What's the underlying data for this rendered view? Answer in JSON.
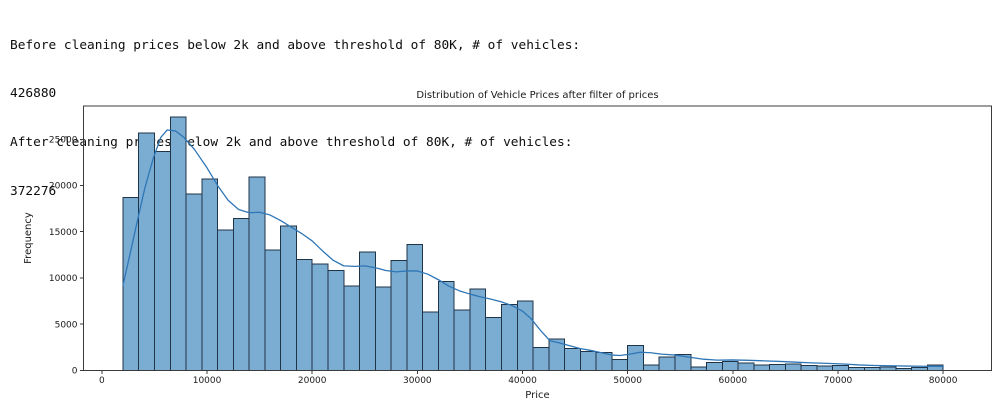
{
  "console_output": {
    "lines": [
      "Before cleaning prices below 2k and above threshold of 80K, # of vehicles:",
      "426880",
      "After cleaning prices below 2k and above threshold of 80K, # of vehicles:",
      "372276"
    ]
  },
  "chart_data": {
    "type": "bar",
    "subtype": "histogram_with_kde",
    "title": "Distribution of Vehicle Prices after filter of prices",
    "xlabel": "Price",
    "ylabel": "Frequency",
    "xlim": [
      -1750,
      84600
    ],
    "ylim": [
      0,
      28600
    ],
    "x_ticks": [
      0,
      10000,
      20000,
      30000,
      40000,
      50000,
      60000,
      70000,
      80000
    ],
    "y_ticks": [
      0,
      5000,
      10000,
      15000,
      20000,
      25000
    ],
    "grid": false,
    "legend": null,
    "bin_start": 2000,
    "bin_width": 1500,
    "bar_heights": [
      18700,
      25700,
      23700,
      27400,
      19100,
      20700,
      15200,
      16400,
      20900,
      13000,
      15600,
      12000,
      11500,
      10800,
      9100,
      12800,
      9000,
      11900,
      13600,
      6300,
      9600,
      6500,
      8800,
      5700,
      7100,
      7500,
      2450,
      3400,
      2350,
      2050,
      1900,
      1150,
      2700,
      600,
      1450,
      1700,
      350,
      850,
      950,
      800,
      600,
      650,
      700,
      500,
      450,
      500,
      280,
      280,
      380,
      220,
      280,
      600
    ],
    "kde_points": [
      [
        2000,
        9200
      ],
      [
        2600,
        12200
      ],
      [
        3300,
        15800
      ],
      [
        4100,
        19800
      ],
      [
        4900,
        23000
      ],
      [
        5600,
        25200
      ],
      [
        6200,
        26000
      ],
      [
        7000,
        25900
      ],
      [
        7800,
        25200
      ],
      [
        8800,
        23900
      ],
      [
        10000,
        21900
      ],
      [
        11000,
        20000
      ],
      [
        12000,
        18400
      ],
      [
        13000,
        17400
      ],
      [
        14000,
        17050
      ],
      [
        15000,
        17100
      ],
      [
        16000,
        16800
      ],
      [
        17000,
        16200
      ],
      [
        18000,
        15500
      ],
      [
        19000,
        14800
      ],
      [
        20000,
        14000
      ],
      [
        21000,
        12900
      ],
      [
        22000,
        11900
      ],
      [
        23000,
        11300
      ],
      [
        24000,
        11250
      ],
      [
        25000,
        11300
      ],
      [
        26000,
        11100
      ],
      [
        27000,
        10800
      ],
      [
        28000,
        10650
      ],
      [
        29000,
        10750
      ],
      [
        30000,
        10750
      ],
      [
        31000,
        10400
      ],
      [
        32000,
        9800
      ],
      [
        33000,
        9100
      ],
      [
        34000,
        8600
      ],
      [
        35000,
        8250
      ],
      [
        36000,
        7950
      ],
      [
        37000,
        7700
      ],
      [
        38000,
        7400
      ],
      [
        39000,
        7000
      ],
      [
        40000,
        6400
      ],
      [
        40800,
        5600
      ],
      [
        41800,
        4200
      ],
      [
        42600,
        3200
      ],
      [
        43400,
        3000
      ],
      [
        44500,
        2650
      ],
      [
        45500,
        2350
      ],
      [
        46500,
        2150
      ],
      [
        47500,
        1900
      ],
      [
        48500,
        1650
      ],
      [
        49300,
        1600
      ],
      [
        50200,
        1750
      ],
      [
        51200,
        1950
      ],
      [
        52200,
        1900
      ],
      [
        53200,
        1750
      ],
      [
        54500,
        1650
      ],
      [
        56000,
        1400
      ],
      [
        57200,
        1200
      ],
      [
        58500,
        1100
      ],
      [
        60000,
        1120
      ],
      [
        61500,
        1080
      ],
      [
        63000,
        1020
      ],
      [
        64500,
        960
      ],
      [
        66000,
        880
      ],
      [
        67500,
        800
      ],
      [
        69000,
        750
      ],
      [
        70500,
        680
      ],
      [
        72000,
        580
      ],
      [
        73500,
        520
      ],
      [
        75000,
        490
      ],
      [
        76500,
        460
      ],
      [
        78000,
        440
      ],
      [
        79200,
        425
      ],
      [
        80000,
        415
      ]
    ],
    "colors": {
      "bar_fill": "#7badd2",
      "bar_edge": "#203448",
      "kde_line": "#2e76b6",
      "axis": "#3b3b3b",
      "text": "#1a1a1a",
      "background": "#ffffff"
    }
  }
}
